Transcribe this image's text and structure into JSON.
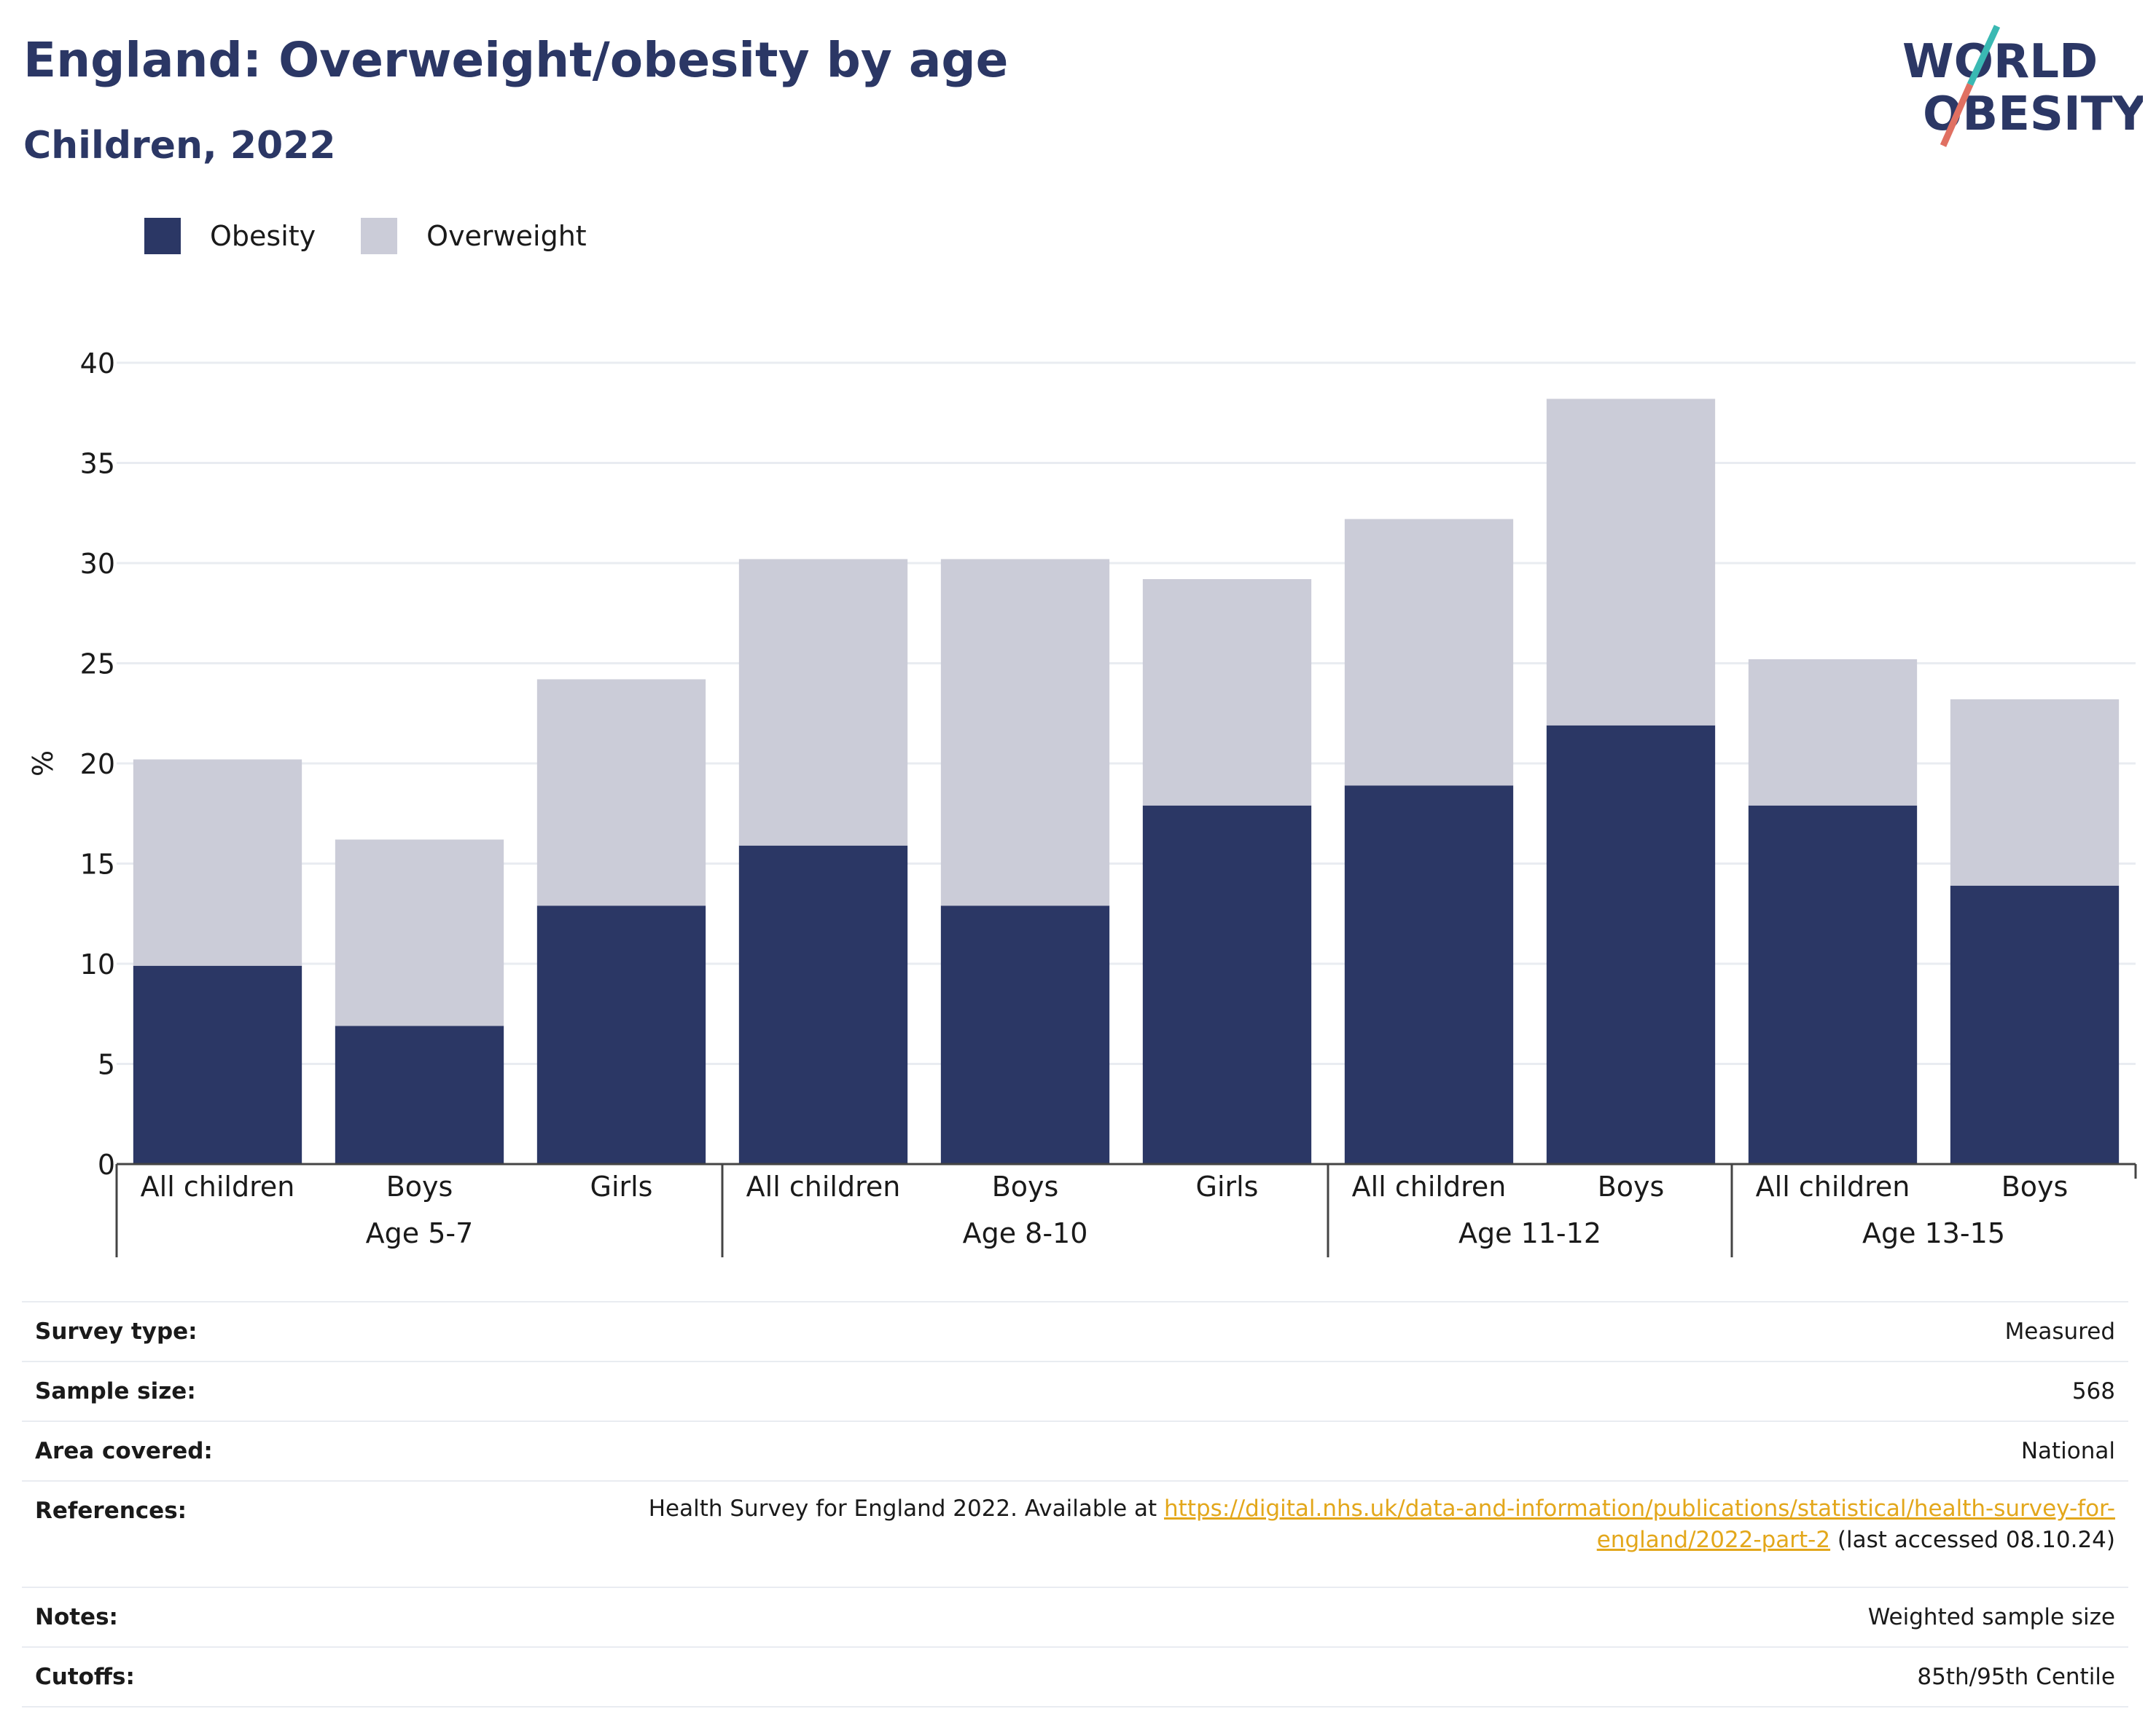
{
  "title": "England: Overweight/obesity by age",
  "subtitle": "Children, 2022",
  "logo": {
    "line1": "WORLD",
    "line2": "OBESITY"
  },
  "colors": {
    "obesity": "#2b3765",
    "overweight": "#cbccd8",
    "title": "#2b3765",
    "link": "#e3a71b",
    "grid": "#e9ecf1"
  },
  "chart_data": {
    "type": "bar",
    "stacked": true,
    "legend": [
      "Obesity",
      "Overweight"
    ],
    "legend_position": "top-left",
    "ylabel": "%",
    "ylim": [
      0,
      40
    ],
    "yticks": [
      0,
      5,
      10,
      15,
      20,
      25,
      30,
      35,
      40
    ],
    "grid": true,
    "categories": [
      "All children",
      "Boys",
      "Girls",
      "All children",
      "Boys",
      "Girls",
      "All children",
      "Boys",
      "All children",
      "Boys"
    ],
    "groups": [
      {
        "label": "Age 5-7",
        "count": 3
      },
      {
        "label": "Age 8-10",
        "count": 3
      },
      {
        "label": "Age 11-12",
        "count": 2
      },
      {
        "label": "Age 13-15",
        "count": 2
      }
    ],
    "series": [
      {
        "name": "Obesity",
        "values": [
          9.9,
          6.9,
          12.9,
          15.9,
          12.9,
          17.9,
          18.9,
          21.9,
          17.9,
          13.9
        ]
      },
      {
        "name": "Overweight",
        "values": [
          10.3,
          9.3,
          11.3,
          14.3,
          17.3,
          11.3,
          13.3,
          16.3,
          7.3,
          9.3
        ]
      }
    ]
  },
  "info": {
    "survey_type": {
      "label": "Survey type:",
      "value": "Measured"
    },
    "sample_size": {
      "label": "Sample size:",
      "value": "568"
    },
    "area_covered": {
      "label": "Area covered:",
      "value": "National"
    },
    "references": {
      "label": "References:",
      "prefix": "Health Survey for England 2022. Available at ",
      "link_line1": "https://digital.nhs.uk/data-and-information/publications/statistical/health-survey-for-",
      "link_line2": "england/2022-part-2",
      "suffix": " (last accessed 08.10.24)"
    },
    "notes": {
      "label": "Notes:",
      "value": "Weighted sample size"
    },
    "cutoffs": {
      "label": "Cutoffs:",
      "value": "85th/95th Centile"
    }
  }
}
